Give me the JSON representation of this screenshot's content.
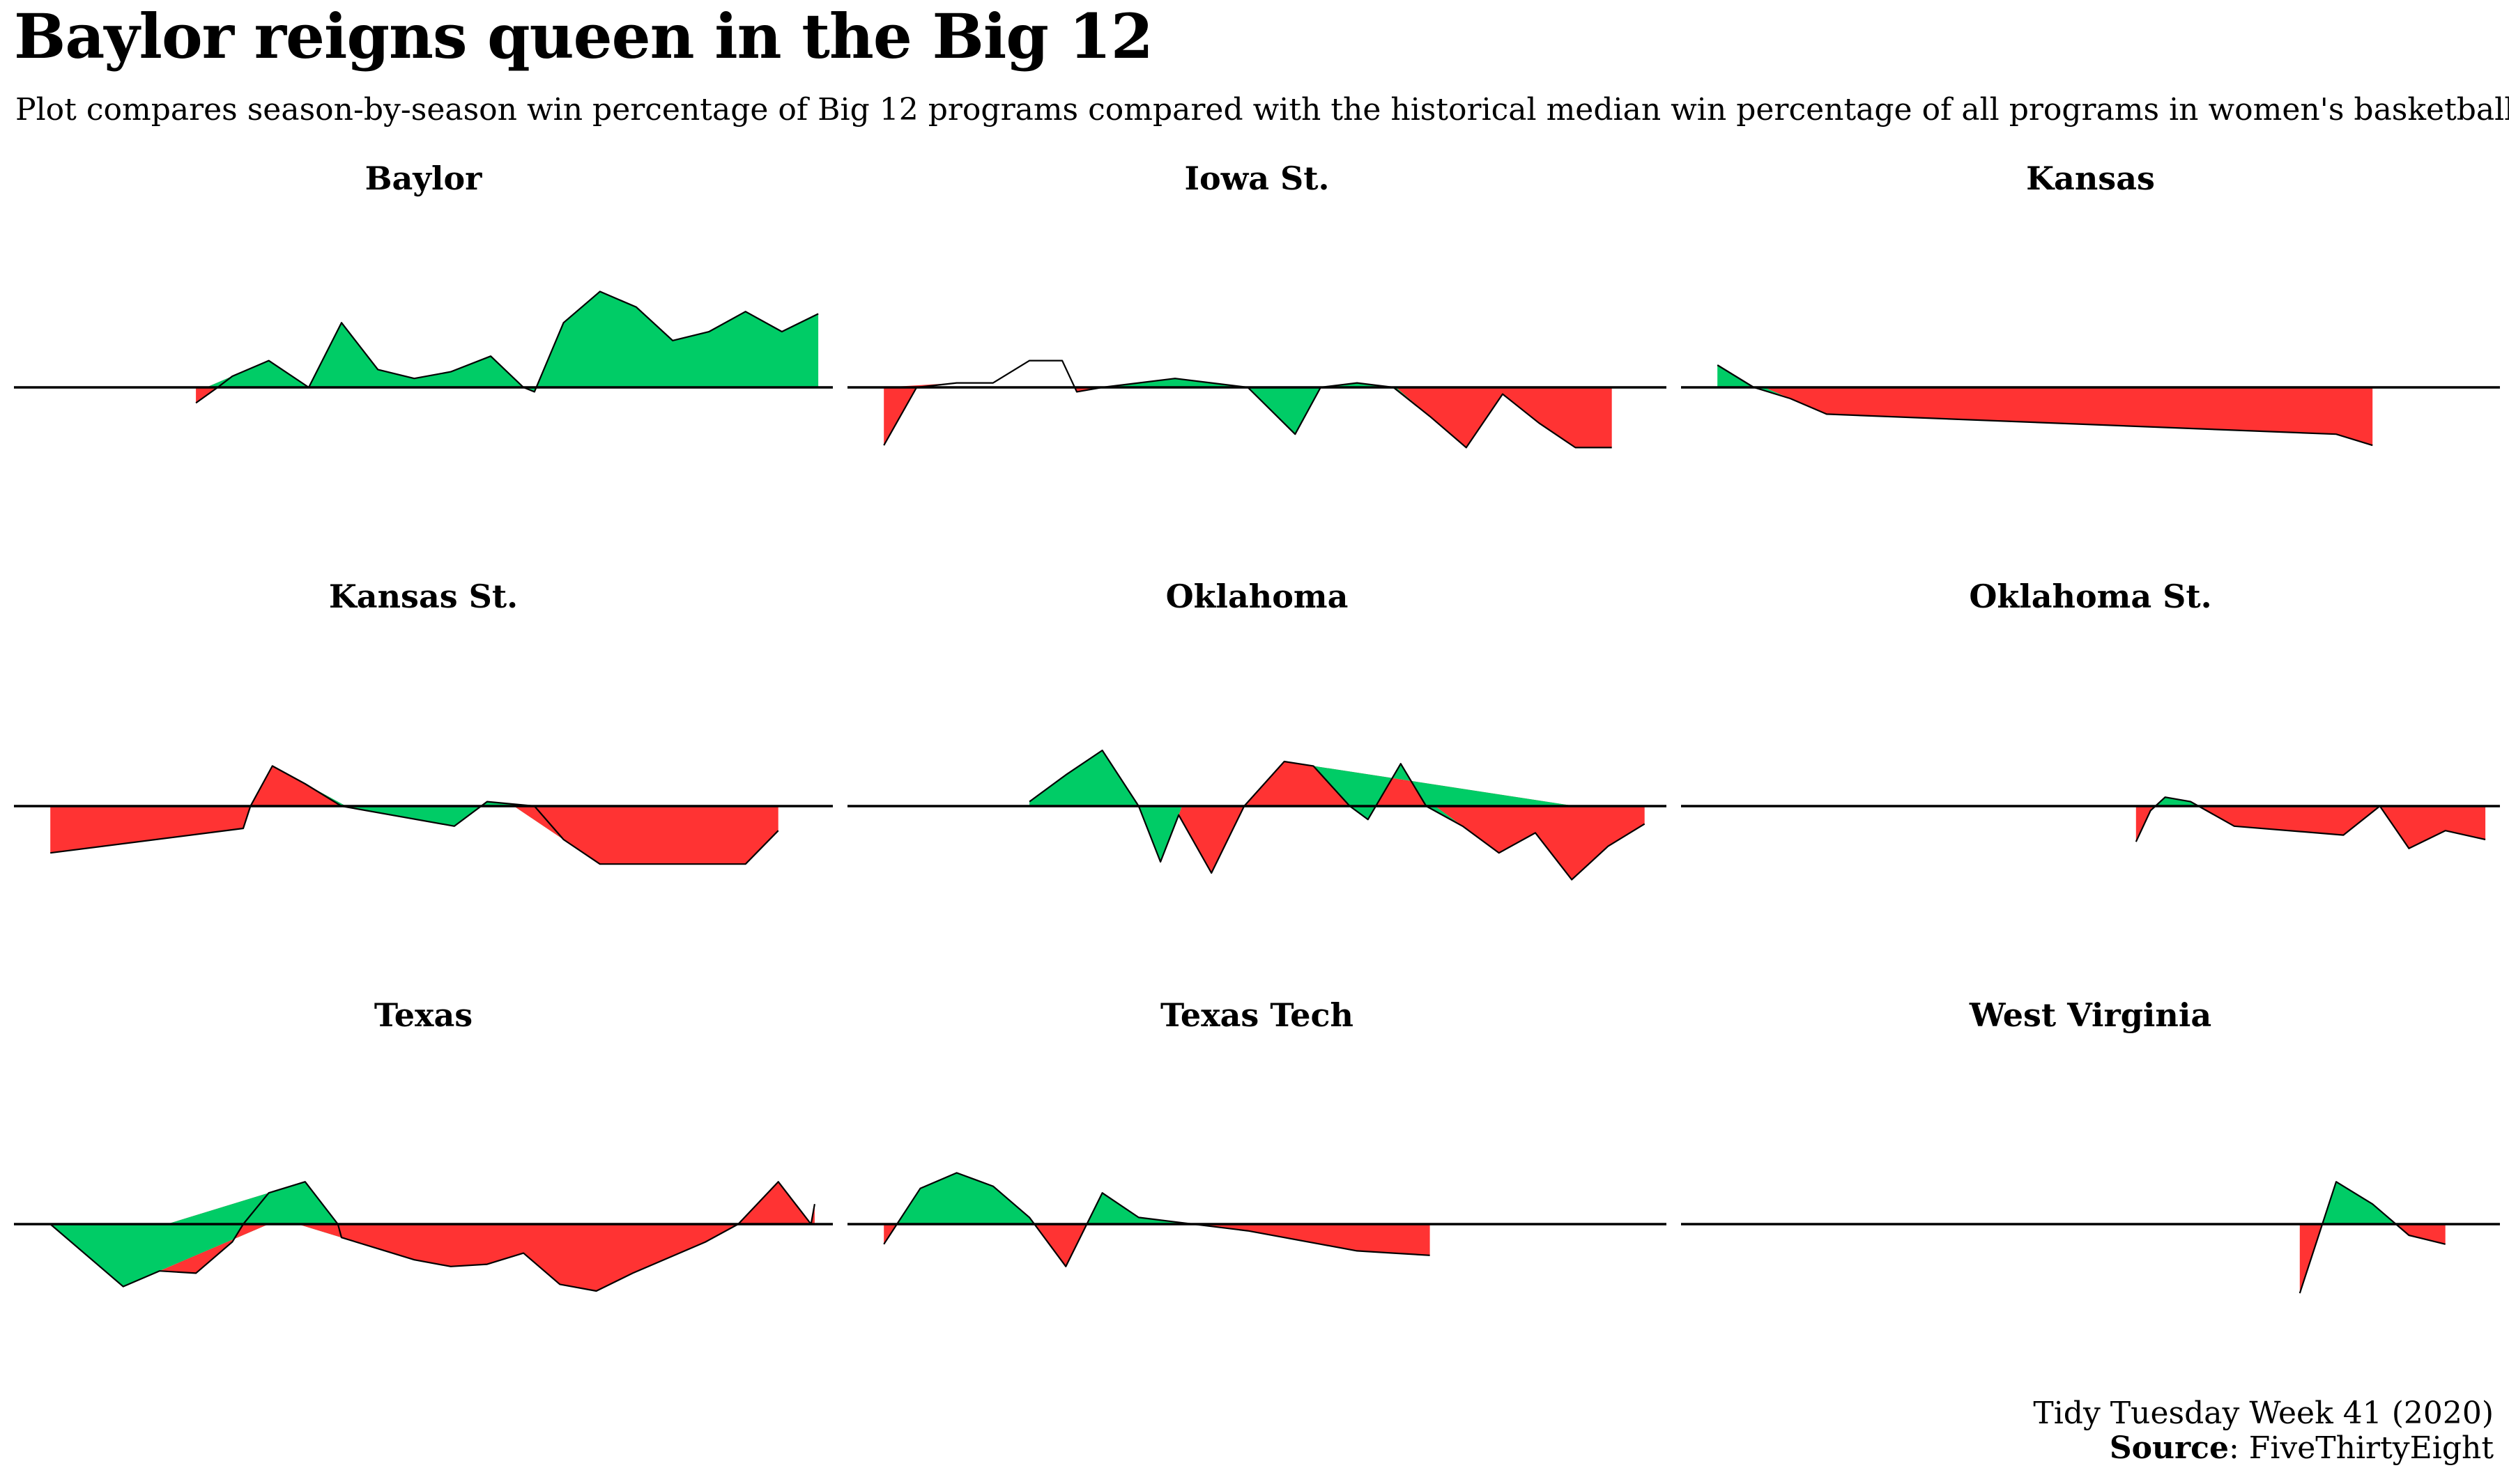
{
  "title": "Baylor reigns queen in the Big 12",
  "subtitle": "Plot compares season-by-season win percentage of Big 12 programs compared with the historical median win percentage of all programs in women's basketball",
  "caption": {
    "line1": "Tidy Tuesday Week 41 (2020)",
    "source_label": "Source",
    "source_text": ": FiveThirtyEight"
  },
  "colors": {
    "above": "#00cc66",
    "below": "#ff3333",
    "baseline": "#000000"
  },
  "chart_data": {
    "type": "area",
    "facets": [
      "Baylor",
      "Iowa St.",
      "Kansas",
      "Kansas St.",
      "Oklahoma",
      "Oklahoma St.",
      "Texas",
      "Texas Tech",
      "West Virginia"
    ],
    "layout": {
      "rows": 3,
      "cols": 3
    },
    "x_unit": "season index (0 = first season shown, 0–22)",
    "y_unit": "win % minus historical median win %",
    "ylim": [
      -0.25,
      0.45
    ],
    "series": [
      {
        "name": "Baylor",
        "x": [
          5,
          5.6,
          6,
          7,
          8.1,
          9,
          10,
          11,
          12,
          13.1,
          14,
          14.3,
          15.1,
          16.1,
          17.1,
          18.1,
          19.1,
          20.1,
          21.1,
          22.1
        ],
        "y": [
          -0.07,
          0.0,
          0.05,
          0.12,
          0.0,
          0.29,
          0.08,
          0.04,
          0.07,
          0.14,
          0.0,
          -0.02,
          0.29,
          0.43,
          0.36,
          0.21,
          0.25,
          0.34,
          0.25,
          0.33
        ]
      },
      {
        "name": "Iowa St.",
        "x": [
          1,
          1.9,
          3,
          4,
          5,
          5.9,
          6.3,
          7,
          8,
          9,
          10,
          11,
          12.3,
          13,
          14,
          15,
          16,
          17,
          18,
          19,
          20,
          21
        ],
        "y": [
          -0.26,
          0.0,
          0.02,
          0.02,
          0.12,
          0.12,
          -0.02,
          0.0,
          0.02,
          0.04,
          0.02,
          0.0,
          -0.21,
          0.0,
          0.02,
          0.0,
          -0.13,
          -0.27,
          -0.03,
          -0.16,
          -0.27,
          -0.27
        ]
      },
      {
        "name": "Kansas",
        "x": [
          1,
          2,
          3,
          4,
          18,
          19
        ],
        "y": [
          0.1,
          0.0,
          -0.05,
          -0.12,
          -0.21,
          -0.26
        ]
      },
      {
        "name": "Kansas St.",
        "x": [
          1,
          6.3,
          6.5,
          7.1,
          8,
          9,
          12.1,
          13,
          14.3,
          15.1,
          16.1,
          20.1,
          21
        ],
        "y": [
          -0.21,
          -0.1,
          0.0,
          0.18,
          0.1,
          0.0,
          -0.09,
          0.02,
          0.0,
          -0.15,
          -0.26,
          -0.26,
          -0.11
        ]
      },
      {
        "name": "Oklahoma",
        "x": [
          5,
          6,
          7,
          8,
          8.6,
          9.1,
          10,
          10.9,
          12,
          12.8,
          13.8,
          14.3,
          15.2,
          15.9,
          16.9,
          17.9,
          18.9,
          19.9,
          20.9,
          21.9
        ],
        "y": [
          0.02,
          0.14,
          0.25,
          0.0,
          -0.25,
          -0.04,
          -0.3,
          0.0,
          0.2,
          0.18,
          0.0,
          -0.06,
          0.19,
          0.0,
          -0.09,
          -0.21,
          -0.12,
          -0.33,
          -0.18,
          -0.08
        ]
      },
      {
        "name": "Oklahoma St.",
        "x": [
          12.5,
          12.9,
          13.3,
          14,
          15.2,
          18.2,
          19.2,
          20,
          21,
          22.1
        ],
        "y": [
          -0.16,
          -0.02,
          0.04,
          0.02,
          -0.09,
          -0.13,
          0.0,
          -0.19,
          -0.11,
          -0.15
        ]
      },
      {
        "name": "Texas",
        "x": [
          1,
          3,
          4,
          5,
          6,
          6.3,
          7,
          8,
          8.9,
          9,
          10,
          11,
          12,
          13,
          14,
          15,
          16,
          17,
          18,
          19,
          19.9,
          21,
          21.9,
          22
        ],
        "y": [
          0.0,
          -0.28,
          -0.21,
          -0.22,
          -0.08,
          0.0,
          0.14,
          0.19,
          0.0,
          -0.06,
          -0.11,
          -0.16,
          -0.19,
          -0.18,
          -0.13,
          -0.27,
          -0.3,
          -0.22,
          -0.15,
          -0.08,
          0.0,
          0.19,
          0.0,
          0.09
        ]
      },
      {
        "name": "Texas Tech",
        "x": [
          1,
          2,
          3,
          4,
          5,
          6,
          7,
          8,
          9,
          10,
          11,
          12,
          13,
          14,
          15,
          16
        ],
        "y": [
          -0.09,
          0.16,
          0.23,
          0.17,
          0.03,
          -0.19,
          0.14,
          0.03,
          0.01,
          -0.01,
          -0.03,
          -0.06,
          -0.09,
          -0.12,
          -0.13,
          -0.14
        ]
      },
      {
        "name": "West Virginia",
        "x": [
          17,
          18,
          19,
          20,
          21
        ],
        "y": [
          -0.31,
          0.19,
          0.09,
          -0.05,
          -0.09
        ]
      }
    ]
  }
}
